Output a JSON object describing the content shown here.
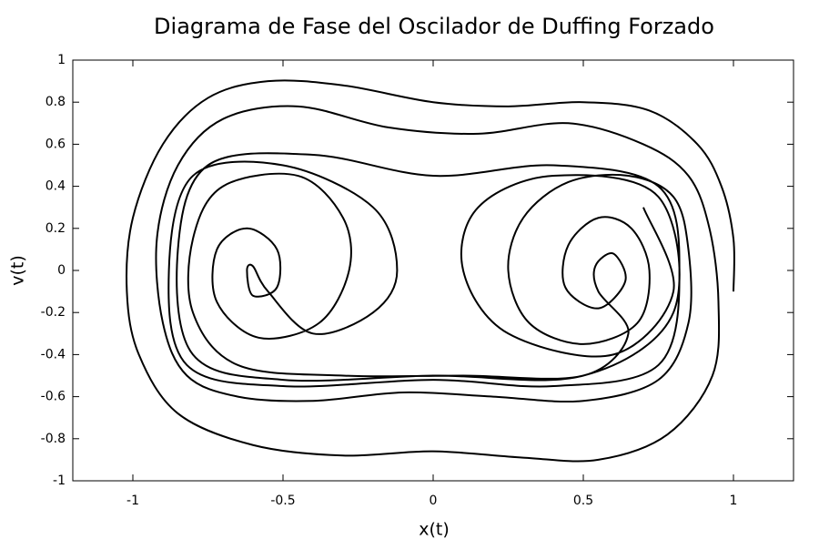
{
  "chart_data": {
    "type": "line",
    "title": "Diagrama de Fase del Oscilador de Duffing Forzado",
    "xlabel": "x(t)",
    "ylabel": "v(t)",
    "xlim": [
      -1.2,
      1.2
    ],
    "xticks": [
      -1,
      -0.5,
      0,
      0.5,
      1
    ],
    "ylim": [
      -1,
      1
    ],
    "yticks": [
      -1,
      -0.8,
      -0.6,
      -0.4,
      -0.2,
      0,
      0.2,
      0.4,
      0.6,
      0.8,
      1
    ],
    "grid": false,
    "series": [
      {
        "color": "#000000",
        "x": [
          1,
          1,
          0.96,
          0.88,
          0.72,
          0.5,
          0.25,
          0,
          -0.3,
          -0.55,
          -0.75,
          -0.9,
          -1,
          -1.02,
          -0.98,
          -0.85,
          -0.6,
          -0.3,
          0,
          0.3,
          0.55,
          0.78,
          0.93,
          0.95,
          0.92,
          0.85,
          0.7,
          0.45,
          0.15,
          -0.15,
          -0.45,
          -0.7,
          -0.85,
          -0.92,
          -0.9,
          -0.82,
          -0.65,
          -0.4,
          -0.1,
          0.2,
          0.5,
          0.75,
          0.85,
          0.85,
          0.8,
          0.65,
          0.45,
          0.3,
          0.25,
          0.32,
          0.5,
          0.68,
          0.72,
          0.66,
          0.55,
          0.45,
          0.44,
          0.55,
          0.64,
          0.6,
          0.54,
          0.55,
          0.65,
          0.5,
          0.1,
          -0.3,
          -0.65,
          -0.8,
          -0.8,
          -0.7,
          -0.45,
          -0.3,
          -0.28,
          -0.38,
          -0.58,
          -0.72,
          -0.72,
          -0.62,
          -0.52,
          -0.52,
          -0.6,
          -0.62,
          -0.6,
          -0.55,
          -0.4,
          -0.2,
          -0.12,
          -0.2,
          -0.5,
          -0.8,
          -0.88,
          -0.82,
          -0.5,
          0,
          0.4,
          0.75,
          0.82,
          0.75,
          0.4,
          0,
          -0.4,
          -0.75,
          -0.85,
          -0.8,
          -0.5,
          0,
          0.5,
          0.8,
          0.75,
          0.4,
          0.15,
          0.1,
          0.25,
          0.6,
          0.8,
          0.7
        ],
        "values": [
          -0.1,
          0.15,
          0.4,
          0.6,
          0.76,
          0.8,
          0.78,
          0.8,
          0.88,
          0.9,
          0.82,
          0.6,
          0.25,
          -0.1,
          -0.4,
          -0.68,
          -0.83,
          -0.88,
          -0.86,
          -0.89,
          -0.9,
          -0.78,
          -0.5,
          -0.15,
          0.2,
          0.45,
          0.6,
          0.7,
          0.65,
          0.68,
          0.78,
          0.72,
          0.5,
          0.15,
          -0.25,
          -0.5,
          -0.6,
          -0.62,
          -0.58,
          -0.6,
          -0.62,
          -0.52,
          -0.25,
          0.1,
          0.35,
          0.45,
          0.42,
          0.25,
          0,
          -0.25,
          -0.35,
          -0.25,
          0,
          0.2,
          0.25,
          0.12,
          -0.08,
          -0.18,
          -0.05,
          0.08,
          0.02,
          -0.1,
          -0.3,
          -0.5,
          -0.5,
          -0.5,
          -0.45,
          -0.2,
          0.15,
          0.4,
          0.45,
          0.25,
          0,
          -0.25,
          -0.32,
          -0.15,
          0.1,
          0.2,
          0.1,
          -0.08,
          -0.12,
          0,
          0.02,
          -0.1,
          -0.3,
          -0.2,
          0,
          0.3,
          0.5,
          0.45,
          0,
          -0.45,
          -0.55,
          -0.52,
          -0.55,
          -0.45,
          0,
          0.4,
          0.5,
          0.45,
          0.55,
          0.5,
          0.1,
          -0.4,
          -0.52,
          -0.5,
          -0.5,
          -0.2,
          0.35,
          0.45,
          0.3,
          0,
          -0.3,
          -0.4,
          -0.1,
          0.3
        ]
      }
    ]
  }
}
